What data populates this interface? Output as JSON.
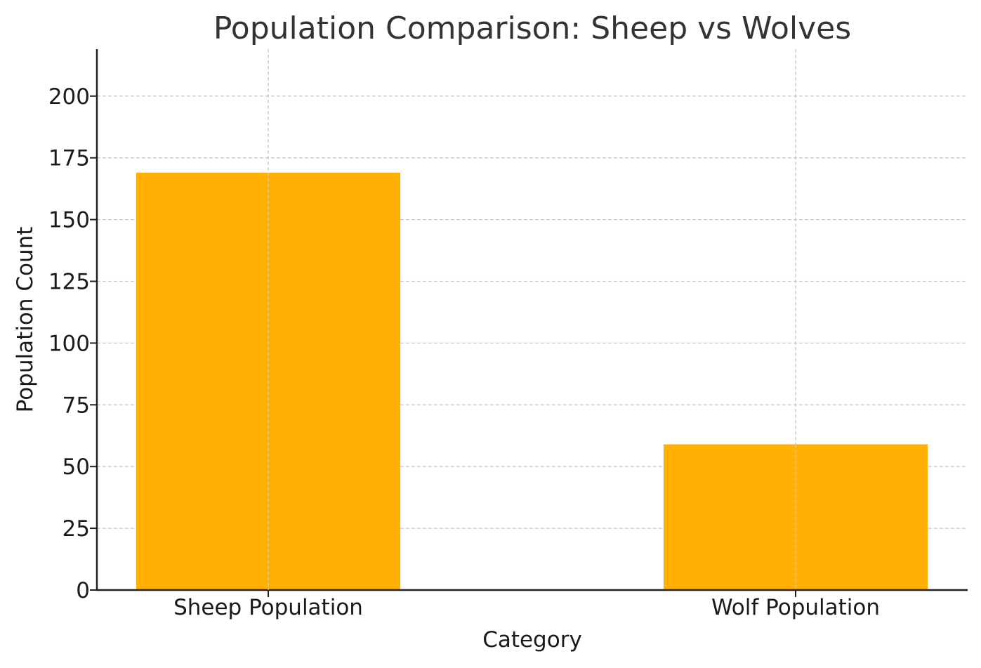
{
  "chart_data": {
    "type": "bar",
    "title": "Population Comparison: Sheep vs Wolves",
    "xlabel": "Category",
    "ylabel": "Population Count",
    "categories": [
      "Sheep Population",
      "Wolf Population"
    ],
    "values": [
      169,
      59
    ],
    "ylim": [
      0,
      219
    ],
    "yticks": [
      0,
      25,
      50,
      75,
      100,
      125,
      150,
      175,
      200
    ],
    "grid": true,
    "bar_color": "#FFB000",
    "text_color": "#1a1a1a",
    "title_color": "#333333",
    "grid_color": "#c8c8c8",
    "axis_color": "#222222"
  }
}
